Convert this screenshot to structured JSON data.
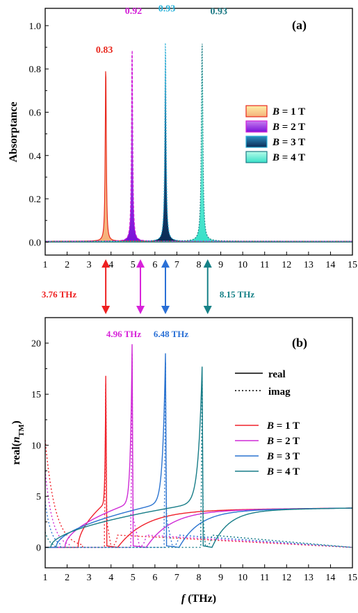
{
  "chart_data": [
    {
      "panel": "(a)",
      "type": "line",
      "xlabel": "",
      "ylabel": "Absorptance",
      "xlim": [
        1,
        15
      ],
      "ylim": [
        -0.06,
        1.08
      ],
      "x_ticks": [
        1,
        2,
        3,
        4,
        5,
        6,
        7,
        8,
        9,
        10,
        11,
        12,
        13,
        14,
        15
      ],
      "y_ticks": [
        0.0,
        0.2,
        0.4,
        0.6,
        0.8,
        1.0
      ],
      "y_tick_labels": [
        "0.0",
        "0.2",
        "0.4",
        "0.6",
        "0.8",
        "1.0"
      ],
      "legend_placement": "right",
      "series": [
        {
          "name_prefix": "B",
          "name_suffix": " = 1 T",
          "peak_x": 3.76,
          "peak_y": 0.83,
          "peak_label": "0.83",
          "color": "#e8281e",
          "fill": "#f5b07a",
          "fill2": "#fdf0a8"
        },
        {
          "name_prefix": "B",
          "name_suffix": " = 2 T",
          "peak_x": 4.96,
          "peak_y": 0.92,
          "peak_label": "0.92",
          "color": "#d21ed7",
          "fill": "#7b12d8",
          "fill2": "#c77bf0"
        },
        {
          "name_prefix": "B",
          "name_suffix": " = 3 T",
          "peak_x": 6.48,
          "peak_y": 0.93,
          "peak_label": "0.93",
          "color": "#2ab1d8",
          "fill": "#0b2a55",
          "fill2": "#2a8fc0"
        },
        {
          "name_prefix": "B",
          "name_suffix": " = 4 T",
          "peak_x": 8.15,
          "peak_y": 0.93,
          "peak_label": "0.93",
          "color": "#1d7a85",
          "fill": "#38e0c8",
          "fill2": "#b6fbe9"
        }
      ]
    },
    {
      "panel": "(b)",
      "type": "line",
      "xlabel_italic": "f",
      "xlabel_rest": " (THz)",
      "ylabel_prefix": "real(",
      "ylabel_italic": "n",
      "ylabel_sub": "TM",
      "ylabel_suffix": ")",
      "xlim": [
        1,
        15
      ],
      "ylim": [
        -2,
        22.5
      ],
      "x_ticks": [
        1,
        2,
        3,
        4,
        5,
        6,
        7,
        8,
        9,
        10,
        11,
        12,
        13,
        14,
        15
      ],
      "y_ticks": [
        0,
        5,
        10,
        15,
        20
      ],
      "line_style_legend": [
        {
          "style": "solid",
          "label": "real"
        },
        {
          "style": "dotted",
          "label": "imag"
        }
      ],
      "legend_placement": "right",
      "series": [
        {
          "name_prefix": "B",
          "name_suffix": " = 1 T",
          "resonance_x": 3.76,
          "peak_y": 16.9,
          "cutoff_x": 2.5,
          "second_cutoff_x": 4.3,
          "color": "#f0202a"
        },
        {
          "name_prefix": "B",
          "name_suffix": " = 2 T",
          "resonance_x": 4.96,
          "peak_y": 20.0,
          "cutoff_x": 1.9,
          "second_cutoff_x": 5.6,
          "color": "#cf2ad6"
        },
        {
          "name_prefix": "B",
          "name_suffix": " = 3 T",
          "resonance_x": 6.48,
          "peak_y": 19.1,
          "cutoff_x": 1.5,
          "second_cutoff_x": 7.1,
          "color": "#2a73d0"
        },
        {
          "name_prefix": "B",
          "name_suffix": " = 4 T",
          "resonance_x": 8.15,
          "peak_y": 17.8,
          "cutoff_x": 1.25,
          "second_cutoff_x": 8.6,
          "color": "#167c87"
        }
      ]
    }
  ],
  "annotations": {
    "arrows": [
      {
        "x": 3.76,
        "label": "3.76 THz",
        "label_side": "left",
        "color": "#ee2020"
      },
      {
        "x": 4.96,
        "label": "4.96 THz",
        "label_side": "below",
        "color": "#d722d9"
      },
      {
        "x": 6.48,
        "label": "6.48 THz",
        "label_side": "below",
        "color": "#2a70d6"
      },
      {
        "x": 8.15,
        "label": "8.15 THz",
        "label_side": "right",
        "color": "#168187"
      }
    ]
  }
}
